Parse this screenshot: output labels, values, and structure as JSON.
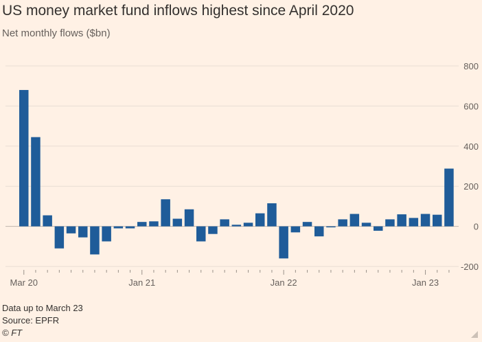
{
  "title": "US money market fund inflows highest since April 2020",
  "subtitle": "Net monthly flows ($bn)",
  "footer": {
    "note": "Data up to March 23",
    "source": "Source: EPFR",
    "credit": "© FT"
  },
  "colors": {
    "background": "#fff1e5",
    "bar": "#1f5c99",
    "grid": "#e8ddd3",
    "text": "#33302e"
  },
  "chart_data": {
    "type": "bar",
    "title": "US money market fund inflows highest since April 2020",
    "subtitle": "Net monthly flows ($bn)",
    "xlabel": "",
    "ylabel": "",
    "ylim": [
      -200,
      800
    ],
    "yticks": [
      800,
      600,
      400,
      200,
      0,
      -200
    ],
    "grid": true,
    "categories": [
      "2020-03",
      "2020-04",
      "2020-05",
      "2020-06",
      "2020-07",
      "2020-08",
      "2020-09",
      "2020-10",
      "2020-11",
      "2020-12",
      "2021-01",
      "2021-02",
      "2021-03",
      "2021-04",
      "2021-05",
      "2021-06",
      "2021-07",
      "2021-08",
      "2021-09",
      "2021-10",
      "2021-11",
      "2021-12",
      "2022-01",
      "2022-02",
      "2022-03",
      "2022-04",
      "2022-05",
      "2022-06",
      "2022-07",
      "2022-08",
      "2022-09",
      "2022-10",
      "2022-11",
      "2022-12",
      "2023-01",
      "2023-02",
      "2023-03"
    ],
    "x_tick_labels": [
      {
        "index": 0,
        "label": "Mar 20"
      },
      {
        "index": 10,
        "label": "Jan 21"
      },
      {
        "index": 22,
        "label": "Jan 22"
      },
      {
        "index": 34,
        "label": "Jan 23"
      }
    ],
    "values": [
      680,
      445,
      55,
      -110,
      -35,
      -55,
      -140,
      -75,
      -10,
      -10,
      22,
      25,
      135,
      38,
      85,
      -75,
      -38,
      35,
      8,
      18,
      65,
      115,
      -160,
      -30,
      22,
      -50,
      -5,
      35,
      62,
      18,
      -22,
      35,
      60,
      42,
      62,
      58,
      288
    ]
  }
}
